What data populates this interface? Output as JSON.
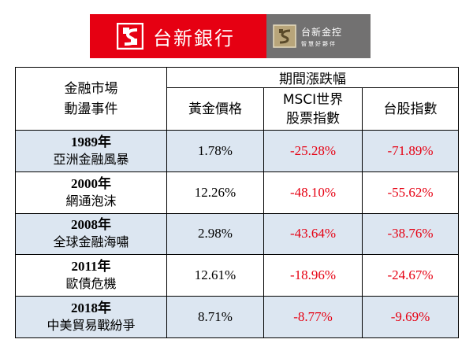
{
  "banner": {
    "bank_name": "台新銀行",
    "holding_name": "台新金控",
    "holding_slogan": "智慧好夥伴",
    "brand_red": "#e60012",
    "brand_gray": "#727171",
    "logo_icon": "taishin-logo-icon",
    "holding_icon": "taishin-holding-logo-icon"
  },
  "table": {
    "header": {
      "event_line1": "金融市場",
      "event_line2": "動盪事件",
      "period": "期間漲跌幅",
      "col_gold": "黃金價格",
      "col_msci_line1": "MSCI世界",
      "col_msci_line2": "股票指數",
      "col_twse": "台股指數"
    },
    "rows": [
      {
        "year": "1989年",
        "event": "亞洲金融風暴",
        "gold": "1.78%",
        "msci": "-25.28%",
        "twse": "-71.89%"
      },
      {
        "year": "2000年",
        "event": "網通泡沫",
        "gold": "12.26%",
        "msci": "-48.10%",
        "twse": "-55.62%"
      },
      {
        "year": "2008年",
        "event": "全球金融海嘯",
        "gold": "2.98%",
        "msci": "-43.64%",
        "twse": "-38.76%"
      },
      {
        "year": "2011年",
        "event": "歐債危機",
        "gold": "12.61%",
        "msci": "-18.96%",
        "twse": "-24.67%"
      },
      {
        "year": "2018年",
        "event": "中美貿易戰紛爭",
        "gold": "8.71%",
        "msci": "-8.77%",
        "twse": "-9.69%"
      }
    ],
    "row_shade_color": "#dce6f1",
    "negative_color": "#e60012"
  }
}
